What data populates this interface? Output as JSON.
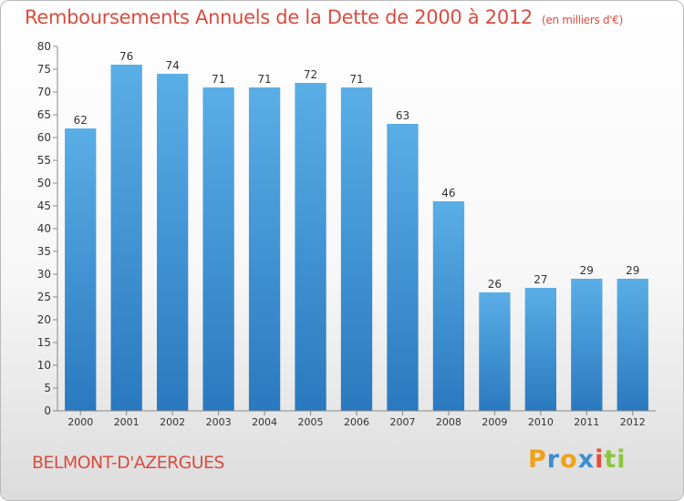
{
  "chart_data": {
    "type": "bar",
    "title": "Remboursements Annuels de la Dette de 2000 à 2012",
    "subtitle": "(en milliers d'€)",
    "categories": [
      "2000",
      "2001",
      "2002",
      "2003",
      "2004",
      "2005",
      "2006",
      "2007",
      "2008",
      "2009",
      "2010",
      "2011",
      "2012"
    ],
    "values": [
      62,
      76,
      74,
      71,
      71,
      72,
      71,
      63,
      46,
      26,
      27,
      29,
      29
    ],
    "ylim": [
      0,
      80
    ],
    "yticks": [
      0,
      5,
      10,
      15,
      20,
      25,
      30,
      35,
      40,
      45,
      50,
      55,
      60,
      65,
      70,
      75,
      80
    ],
    "xlabel": "",
    "ylabel": "",
    "grid": false
  },
  "footer": {
    "city": "BELMONT-D'AZERGUES",
    "logo_letters": [
      "P",
      "r",
      "o",
      "x",
      "i",
      "t",
      "i"
    ]
  },
  "colors": {
    "title": "#d94d40",
    "bar_top": "#5aaee6",
    "bar_bottom": "#2a79bf",
    "logo": [
      "#f0a21b",
      "#3d8fd1",
      "#f0a21b",
      "#3d8fd1",
      "#e74c3c",
      "#8dc63f",
      "#8dc63f"
    ]
  }
}
